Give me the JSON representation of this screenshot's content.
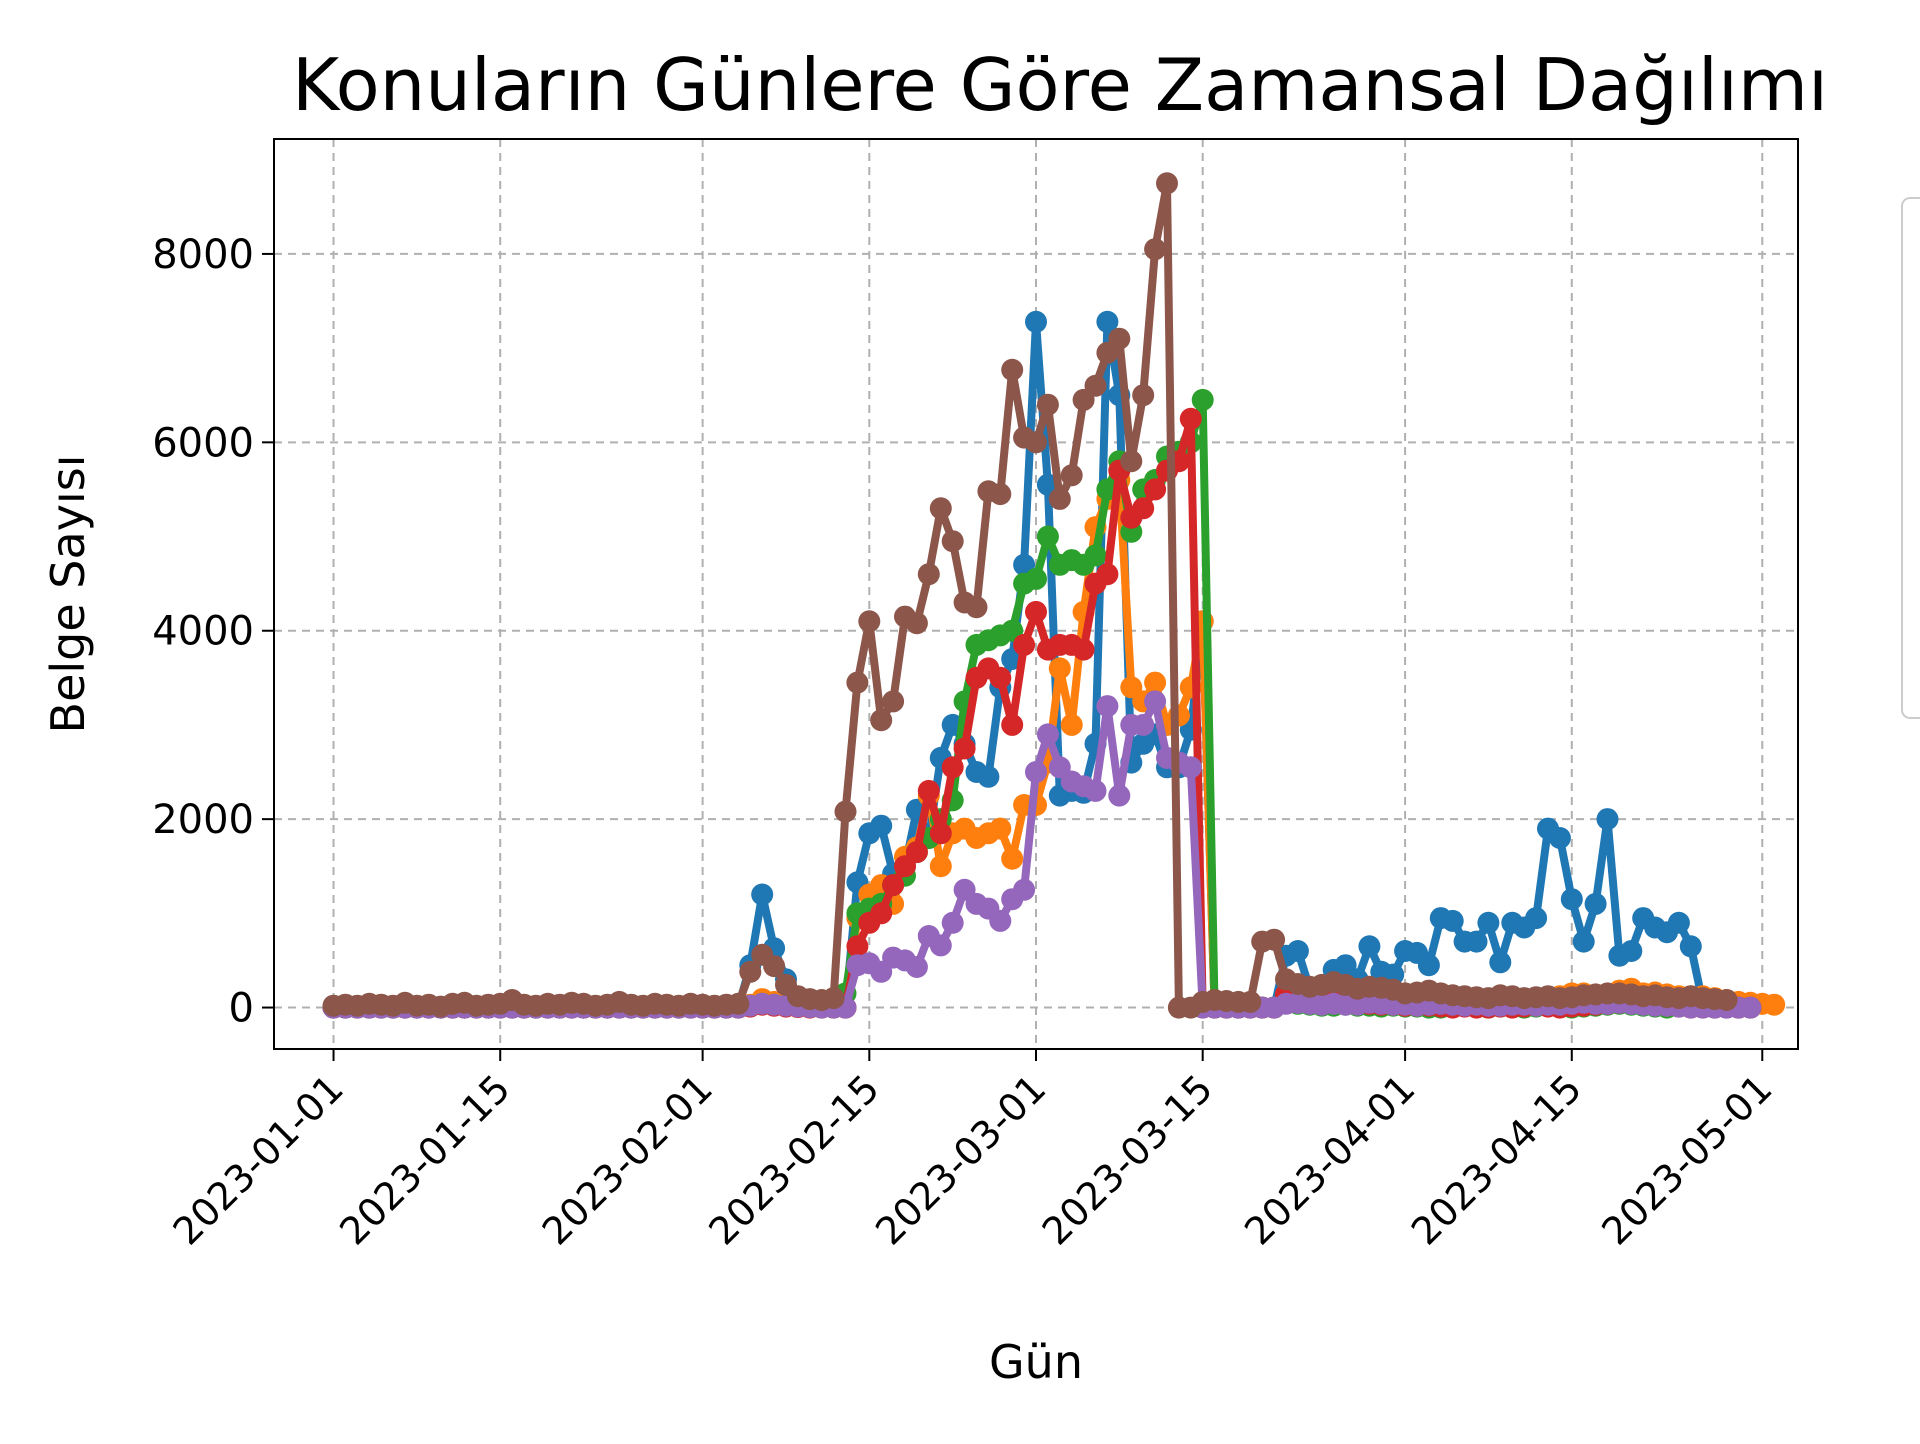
{
  "chart_data": {
    "type": "line",
    "title": "Konuların Günlere Göre Zamansal Dağılımı",
    "xlabel": "Gün",
    "ylabel": "Belge Sayısı",
    "x_start": "2023-01-01",
    "x_end": "2023-04-28",
    "x_ticks": [
      "2023-01-01",
      "2023-01-15",
      "2023-02-01",
      "2023-02-15",
      "2023-03-01",
      "2023-03-15",
      "2023-04-01",
      "2023-04-15",
      "2023-05-01"
    ],
    "xlim": [
      "2022-12-27",
      "2023-05-04"
    ],
    "y_ticks": [
      0,
      2000,
      4000,
      6000,
      8000
    ],
    "ylim": [
      -440,
      9220
    ],
    "grid": true,
    "legend_placement": "right",
    "series": [
      {
        "color": "#1f77b4",
        "values": [
          0,
          0,
          0,
          0,
          0,
          0,
          0,
          0,
          0,
          0,
          0,
          0,
          0,
          0,
          0,
          0,
          0,
          0,
          0,
          0,
          0,
          0,
          0,
          0,
          0,
          0,
          0,
          0,
          0,
          0,
          0,
          0,
          0,
          0,
          0,
          450,
          1200,
          630,
          300,
          100,
          60,
          50,
          30,
          0,
          1330,
          1850,
          1930,
          1420,
          1500,
          2100,
          1800,
          2650,
          3000,
          2800,
          2500,
          2450,
          3400,
          3700,
          4700,
          7280,
          5550,
          2250,
          2300,
          2280,
          2800,
          7280,
          6500,
          2600,
          2800,
          2900,
          2550,
          2550,
          2950,
          4100,
          0,
          0,
          0,
          0,
          0,
          0,
          550,
          600,
          200,
          200,
          400,
          450,
          300,
          650,
          380,
          350,
          600,
          580,
          450,
          950,
          920,
          700,
          700,
          900,
          480,
          900,
          850,
          950,
          1900,
          1800,
          1150,
          700,
          1100,
          2000,
          550,
          600,
          950,
          850,
          800,
          900,
          650,
          50,
          0,
          0,
          0,
          0
        ]
      },
      {
        "color": "#ff7f0e",
        "values": [
          0,
          0,
          0,
          0,
          0,
          0,
          0,
          0,
          0,
          0,
          0,
          0,
          0,
          0,
          0,
          0,
          0,
          0,
          0,
          0,
          0,
          0,
          0,
          0,
          0,
          0,
          0,
          0,
          0,
          0,
          0,
          0,
          0,
          0,
          0,
          30,
          90,
          60,
          40,
          20,
          10,
          5,
          0,
          0,
          950,
          1200,
          1300,
          1100,
          1600,
          1700,
          2250,
          1500,
          1850,
          1900,
          1800,
          1850,
          1900,
          1580,
          2150,
          2150,
          2600,
          3600,
          3000,
          4200,
          5100,
          5400,
          5600,
          3400,
          3250,
          3450,
          3000,
          3100,
          3400,
          4100,
          0,
          0,
          0,
          0,
          0,
          0,
          80,
          100,
          60,
          50,
          60,
          60,
          50,
          50,
          40,
          50,
          60,
          80,
          60,
          50,
          50,
          60,
          60,
          70,
          60,
          80,
          70,
          90,
          100,
          120,
          150,
          150,
          120,
          140,
          180,
          200,
          150,
          160,
          140,
          120,
          120,
          120,
          100,
          80,
          60,
          50,
          40,
          30
        ]
      },
      {
        "color": "#2ca02c",
        "values": [
          0,
          0,
          0,
          0,
          0,
          0,
          0,
          0,
          0,
          0,
          0,
          0,
          0,
          0,
          0,
          0,
          0,
          0,
          0,
          0,
          0,
          0,
          0,
          0,
          0,
          0,
          0,
          0,
          0,
          0,
          0,
          0,
          0,
          0,
          0,
          20,
          40,
          30,
          20,
          10,
          5,
          0,
          0,
          150,
          1000,
          1050,
          1100,
          1300,
          1400,
          1650,
          1800,
          2000,
          2200,
          3250,
          3850,
          3900,
          3950,
          4000,
          4500,
          4550,
          5000,
          4700,
          4750,
          4700,
          4800,
          5500,
          5800,
          5050,
          5500,
          5600,
          5850,
          5900,
          6000,
          6450,
          0,
          0,
          0,
          0,
          0,
          0,
          60,
          40,
          30,
          20,
          20,
          30,
          20,
          20,
          10,
          20,
          10,
          10,
          0,
          0,
          10,
          20,
          10,
          0,
          10,
          10,
          0,
          10,
          20,
          10,
          0,
          10,
          20,
          30,
          40,
          30,
          20,
          10,
          0,
          10,
          20,
          30,
          20,
          10,
          0,
          0
        ]
      },
      {
        "color": "#d62728",
        "values": [
          0,
          0,
          0,
          0,
          0,
          0,
          0,
          0,
          0,
          0,
          0,
          0,
          0,
          0,
          0,
          0,
          0,
          0,
          0,
          0,
          0,
          0,
          0,
          0,
          0,
          0,
          0,
          0,
          0,
          0,
          0,
          0,
          0,
          0,
          0,
          10,
          30,
          20,
          10,
          5,
          0,
          0,
          0,
          0,
          650,
          900,
          1000,
          1300,
          1500,
          1650,
          2300,
          1850,
          2550,
          2750,
          3500,
          3600,
          3500,
          3000,
          3850,
          4200,
          3800,
          3850,
          3850,
          3800,
          4500,
          4600,
          5700,
          5200,
          5300,
          5500,
          5700,
          5800,
          6250,
          0,
          0,
          0,
          0,
          0,
          0,
          0,
          140,
          150,
          100,
          80,
          60,
          50,
          40,
          40,
          30,
          30,
          20,
          20,
          20,
          10,
          0,
          10,
          0,
          0,
          10,
          0,
          10,
          20,
          10,
          0,
          10,
          20,
          30,
          40,
          50,
          60,
          40,
          30,
          20,
          10,
          0,
          0,
          0,
          0,
          0,
          0
        ]
      },
      {
        "color": "#9467bd",
        "values": [
          0,
          0,
          0,
          0,
          0,
          0,
          0,
          0,
          0,
          0,
          0,
          0,
          0,
          0,
          0,
          0,
          0,
          0,
          0,
          0,
          0,
          0,
          0,
          0,
          0,
          0,
          0,
          0,
          0,
          0,
          0,
          0,
          0,
          0,
          0,
          20,
          40,
          30,
          20,
          10,
          5,
          0,
          0,
          0,
          450,
          470,
          380,
          530,
          500,
          430,
          760,
          660,
          900,
          1250,
          1100,
          1050,
          920,
          1150,
          1250,
          2500,
          2900,
          2550,
          2400,
          2350,
          2300,
          3200,
          2250,
          3000,
          3000,
          3250,
          2650,
          2600,
          2550,
          0,
          0,
          0,
          0,
          0,
          0,
          0,
          40,
          50,
          40,
          30,
          40,
          30,
          30,
          50,
          40,
          30,
          30,
          20,
          30,
          40,
          30,
          20,
          30,
          20,
          20,
          30,
          30,
          20,
          30,
          30,
          40,
          50,
          40,
          40,
          50,
          40,
          30,
          20,
          20,
          10,
          0,
          0,
          0,
          0,
          0,
          0
        ]
      },
      {
        "color": "#8c564b",
        "values": [
          20,
          30,
          20,
          40,
          30,
          20,
          50,
          20,
          30,
          10,
          40,
          50,
          20,
          30,
          40,
          80,
          30,
          20,
          40,
          30,
          50,
          40,
          20,
          30,
          60,
          30,
          20,
          40,
          30,
          20,
          40,
          30,
          20,
          30,
          40,
          380,
          560,
          440,
          240,
          120,
          90,
          80,
          100,
          2080,
          3450,
          4100,
          3050,
          3250,
          4150,
          4080,
          4600,
          5300,
          4950,
          4300,
          4250,
          5480,
          5450,
          6770,
          6050,
          6000,
          6400,
          5400,
          5650,
          6450,
          6600,
          6950,
          7100,
          5800,
          6500,
          8050,
          8750,
          0,
          0,
          60,
          80,
          70,
          60,
          60,
          700,
          720,
          300,
          250,
          220,
          240,
          270,
          240,
          200,
          220,
          210,
          190,
          150,
          160,
          180,
          150,
          130,
          120,
          110,
          100,
          130,
          120,
          100,
          110,
          120,
          100,
          110,
          130,
          140,
          150,
          150,
          140,
          120,
          130,
          110,
          100,
          120,
          100,
          90,
          80
        ]
      }
    ]
  }
}
